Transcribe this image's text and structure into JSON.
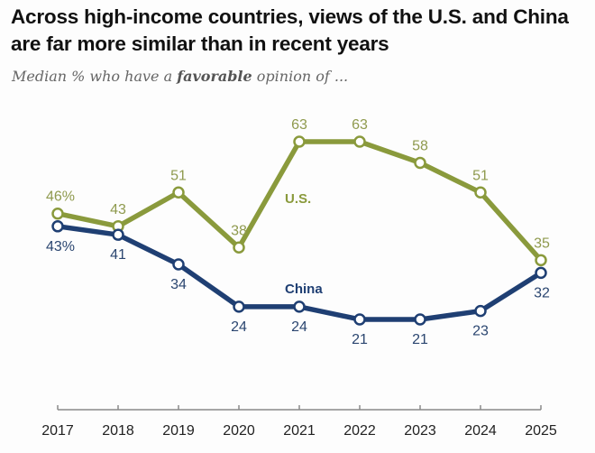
{
  "header": {
    "title": "Across high-income countries, views of the U.S. and China are far more similar than in recent years",
    "subtitle_pre": "Median % who have a ",
    "subtitle_bold": "favorable",
    "subtitle_post": " opinion of ..."
  },
  "chart_data": {
    "type": "line",
    "title": "Across high-income countries, views of the U.S. and China are far more similar than in recent years",
    "subtitle": "Median % who have a favorable opinion of ...",
    "xlabel": "",
    "ylabel": "",
    "x": [
      "2017",
      "2018",
      "2019",
      "2020",
      "2021",
      "2022",
      "2023",
      "2024",
      "2025"
    ],
    "ylim": [
      0,
      63
    ],
    "grid": false,
    "legend": "inline labels",
    "series": [
      {
        "name": "U.S.",
        "color": "#8a9a3c",
        "values": [
          46,
          43,
          51,
          38,
          63,
          63,
          58,
          51,
          35
        ],
        "labels": [
          "46%",
          "43",
          "51",
          "38",
          "63",
          "63",
          "58",
          "51",
          "35"
        ]
      },
      {
        "name": "China",
        "color": "#1f3f73",
        "values": [
          43,
          41,
          34,
          24,
          24,
          21,
          21,
          23,
          32
        ],
        "labels": [
          "43%",
          "41",
          "34",
          "24",
          "24",
          "21",
          "21",
          "23",
          "32"
        ]
      }
    ]
  }
}
